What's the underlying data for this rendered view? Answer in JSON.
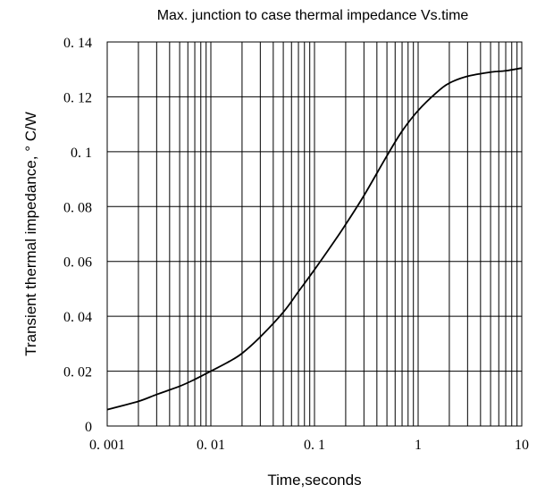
{
  "chart_data": {
    "type": "line",
    "title": "Max. junction to case thermal impedance Vs.time",
    "xlabel": "Time,seconds",
    "ylabel": "Transient thermal impedance, ° C/W",
    "x_scale": "log",
    "xlim": [
      0.001,
      10
    ],
    "ylim": [
      0,
      0.14
    ],
    "grid": true,
    "x_ticks": [
      {
        "value": 0.001,
        "label": "0. 001"
      },
      {
        "value": 0.01,
        "label": "0. 01"
      },
      {
        "value": 0.1,
        "label": "0. 1"
      },
      {
        "value": 1,
        "label": "1"
      },
      {
        "value": 10,
        "label": "10"
      }
    ],
    "y_ticks": [
      {
        "value": 0,
        "label": "0"
      },
      {
        "value": 0.02,
        "label": "0. 02"
      },
      {
        "value": 0.04,
        "label": "0. 04"
      },
      {
        "value": 0.06,
        "label": "0. 06"
      },
      {
        "value": 0.08,
        "label": "0. 08"
      },
      {
        "value": 0.1,
        "label": "0. 1"
      },
      {
        "value": 0.12,
        "label": "0. 12"
      },
      {
        "value": 0.14,
        "label": "0. 14"
      }
    ],
    "series": [
      {
        "x": [
          0.001,
          0.002,
          0.003,
          0.005,
          0.007,
          0.01,
          0.015,
          0.02,
          0.03,
          0.05,
          0.07,
          0.1,
          0.15,
          0.2,
          0.3,
          0.5,
          0.7,
          1,
          1.5,
          2,
          3,
          5,
          7,
          10
        ],
        "y": [
          0.006,
          0.009,
          0.0115,
          0.0145,
          0.017,
          0.02,
          0.0235,
          0.0265,
          0.0325,
          0.0415,
          0.049,
          0.057,
          0.0665,
          0.0735,
          0.084,
          0.0985,
          0.1075,
          0.115,
          0.1215,
          0.125,
          0.1275,
          0.129,
          0.1295,
          0.1305
        ]
      }
    ]
  }
}
